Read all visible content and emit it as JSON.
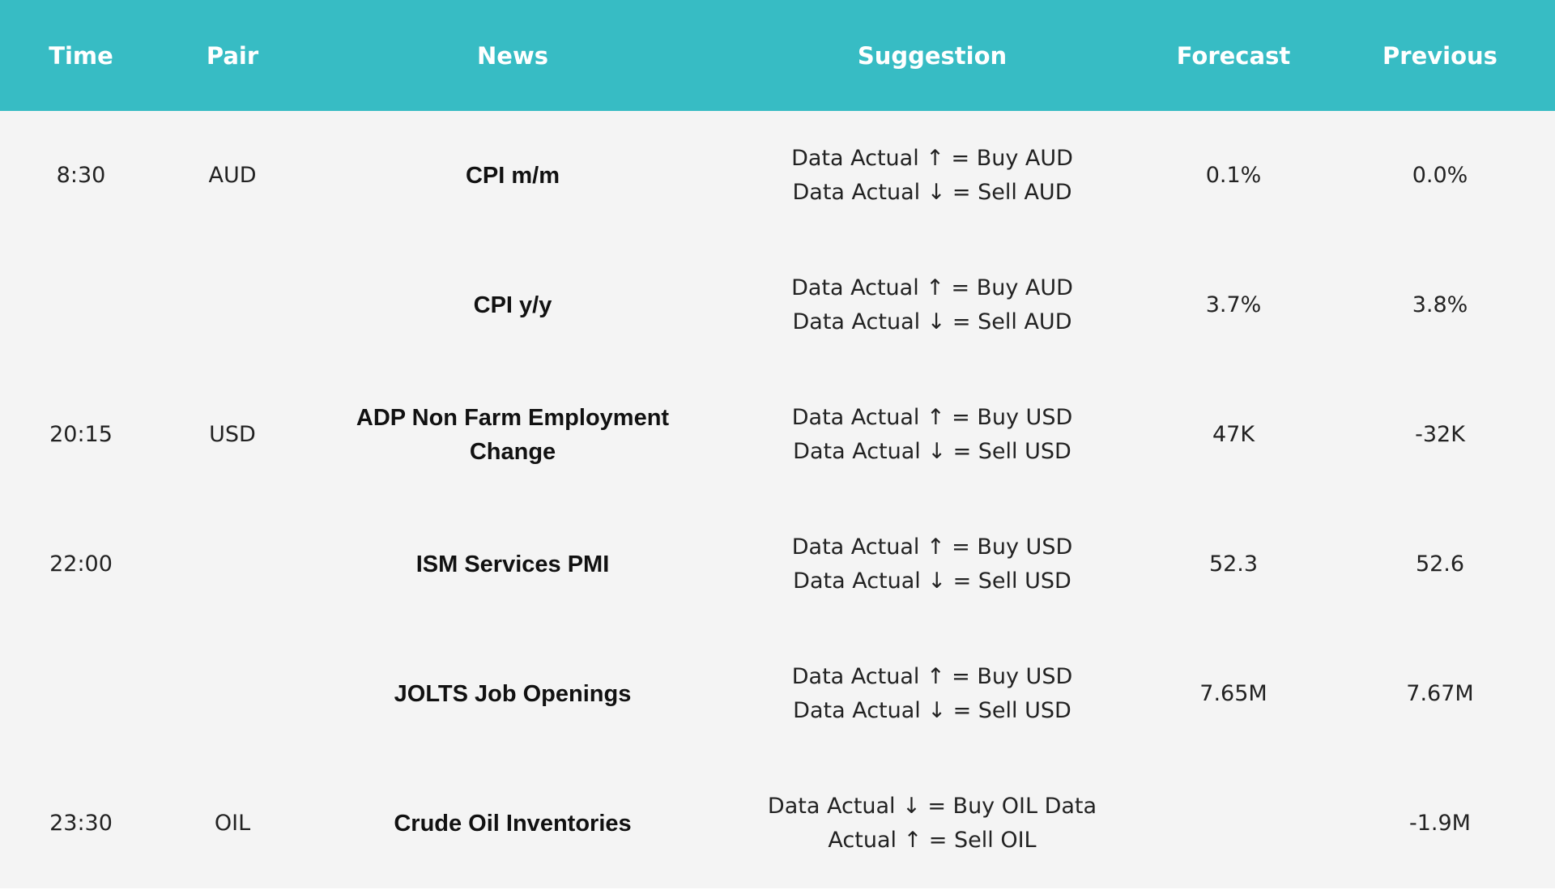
{
  "table": {
    "header": [
      "Time",
      "Pair",
      "News",
      "Suggestion",
      "Forecast",
      "Previous"
    ],
    "rows": [
      {
        "time": "8:30",
        "pair": "AUD",
        "news": "CPI m/m",
        "suggestion": [
          "Data Actual ↑ = Buy AUD",
          "Data Actual ↓ = Sell AUD"
        ],
        "forecast": "0.1%",
        "previous": "0.0%"
      },
      {
        "time": null,
        "pair": null,
        "news": "CPI y/y",
        "suggestion": [
          "Data Actual ↑ = Buy AUD",
          "Data Actual ↓ = Sell AUD"
        ],
        "forecast": "3.7%",
        "previous": "3.8%"
      },
      {
        "time": "20:15",
        "pair": "USD",
        "news": "ADP Non Farm Employment Change",
        "suggestion": [
          "Data Actual ↑ = Buy USD",
          "Data Actual ↓ = Sell USD"
        ],
        "forecast": "47K",
        "previous": "-32K"
      },
      {
        "time": "22:00",
        "pair": null,
        "news": "ISM Services PMI",
        "suggestion": [
          "Data Actual ↑ = Buy USD",
          "Data Actual ↓ = Sell USD"
        ],
        "forecast": "52.3",
        "previous": "52.6"
      },
      {
        "time": null,
        "pair": null,
        "news": "JOLTS Job Openings",
        "suggestion": [
          "Data Actual ↑ = Buy USD",
          "Data Actual ↓ = Sell USD"
        ],
        "forecast": "7.65M",
        "previous": "7.67M"
      },
      {
        "time": "23:30",
        "pair": "OIL",
        "news": "Crude Oil Inventories",
        "suggestion": [
          "Data Actual ↓ = Buy OIL Data Actual ↑ = Sell OIL"
        ],
        "forecast": null,
        "previous": "-1.9M"
      }
    ]
  }
}
